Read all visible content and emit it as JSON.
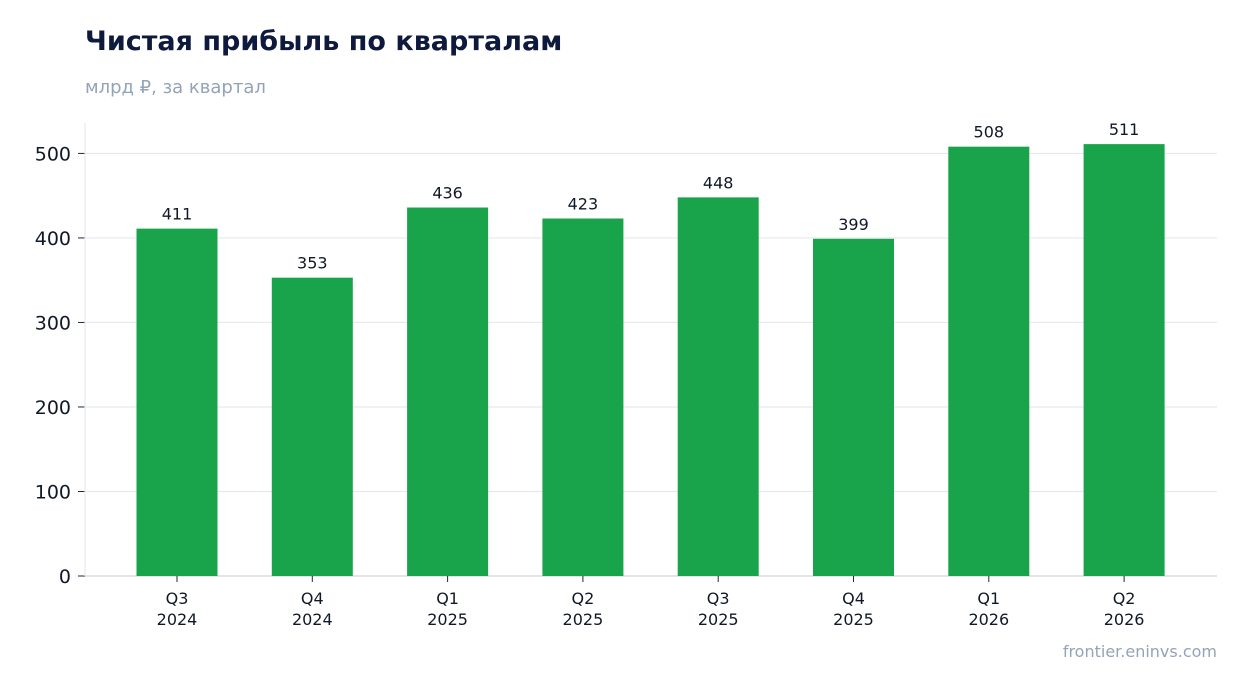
{
  "chart_data": {
    "type": "bar",
    "title": "Чистая прибыль по кварталам",
    "subtitle": "млрд ₽, за квартал",
    "categories": [
      [
        "Q3",
        "2024"
      ],
      [
        "Q4",
        "2024"
      ],
      [
        "Q1",
        "2025"
      ],
      [
        "Q2",
        "2025"
      ],
      [
        "Q3",
        "2025"
      ],
      [
        "Q4",
        "2025"
      ],
      [
        "Q1",
        "2026"
      ],
      [
        "Q2",
        "2026"
      ]
    ],
    "values": [
      411,
      353,
      436,
      423,
      448,
      399,
      508,
      511
    ],
    "ylim": [
      0,
      536
    ],
    "yticks": [
      0,
      100,
      200,
      300,
      400,
      500
    ],
    "grid": true,
    "bar_color": "#19a34a"
  },
  "source": "frontier.eninvs.com"
}
